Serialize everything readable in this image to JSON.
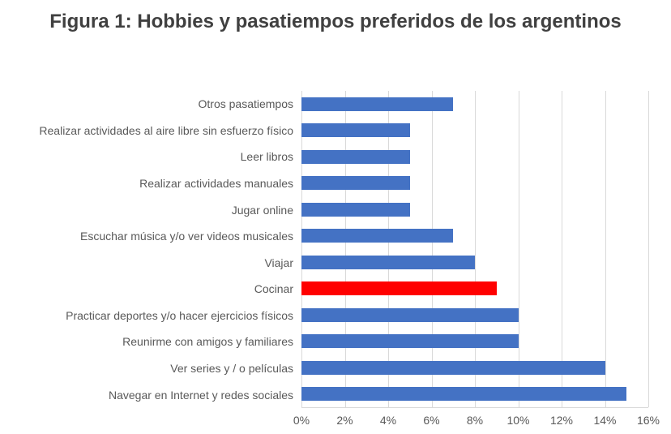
{
  "figure": {
    "title": "Figura 1: Hobbies y pasatiempos preferidos de los argentinos"
  },
  "chart_data": {
    "type": "bar",
    "orientation": "horizontal",
    "title": "Figura 1: Hobbies y pasatiempos preferidos de los argentinos",
    "categories": [
      "Otros pasatiempos",
      "Realizar actividades al aire libre sin esfuerzo físico",
      "Leer libros",
      "Realizar actividades manuales",
      "Jugar online",
      "Escuchar música y/o ver videos musicales",
      "Viajar",
      "Cocinar",
      "Practicar deportes y/o hacer ejercicios físicos",
      "Reunirme con amigos y familiares",
      "Ver series y / o películas",
      "Navegar en Internet y redes sociales"
    ],
    "values": [
      7,
      5,
      5,
      5,
      5,
      7,
      8,
      9,
      10,
      10,
      14,
      15
    ],
    "unit": "%",
    "xlim": [
      0,
      16
    ],
    "x_tick_values": [
      0,
      2,
      4,
      6,
      8,
      10,
      12,
      14,
      16
    ],
    "x_ticks": [
      "0%",
      "2%",
      "4%",
      "6%",
      "8%",
      "10%",
      "12%",
      "14%",
      "16%"
    ],
    "bar_color": "#4472C4",
    "highlight": {
      "category": "Cocinar",
      "index": 7,
      "color": "#FF0000"
    },
    "grid": true,
    "gridline_color": "#D9D9D9",
    "legend": false,
    "xlabel": "",
    "ylabel": ""
  }
}
